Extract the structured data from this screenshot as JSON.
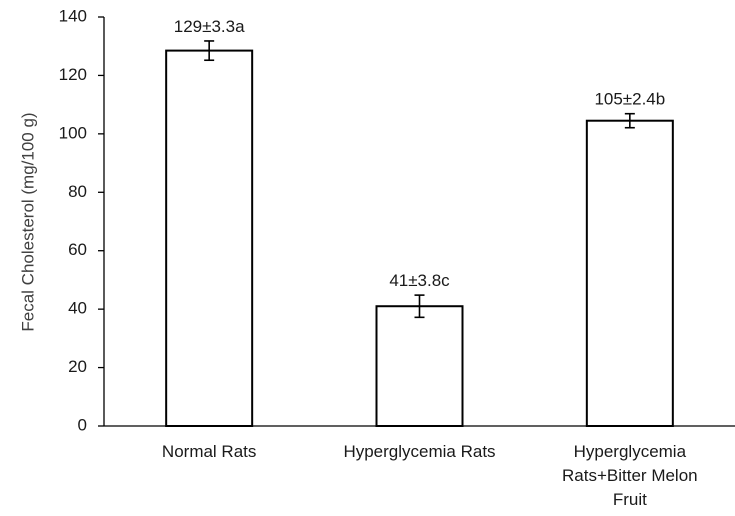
{
  "chart_data": {
    "type": "bar",
    "title": "",
    "xlabel": "",
    "ylabel": "Fecal Cholesterol (mg/100 g)",
    "ylim": [
      0,
      140
    ],
    "yticks": [
      0,
      20,
      40,
      60,
      80,
      100,
      120,
      140
    ],
    "grid": false,
    "legend": "none",
    "categories": [
      [
        "Normal Rats"
      ],
      [
        "Hyperglycemia Rats"
      ],
      [
        "Hyperglycemia",
        "Rats+Bitter Melon",
        "Fruit"
      ]
    ],
    "values": [
      128.5,
      41,
      104.5
    ],
    "errors": [
      3.3,
      3.8,
      2.4
    ],
    "data_labels": [
      "129±3.3a",
      "41±3.8c",
      "105±2.4b"
    ],
    "colors": {
      "bar_fill": "#ffffff",
      "bar_stroke": "#000000",
      "axis": "#000000",
      "text": "#1a1a1a"
    }
  }
}
